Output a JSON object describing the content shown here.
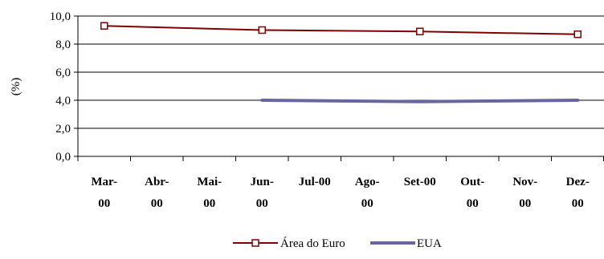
{
  "chart_data": {
    "type": "line",
    "title": "",
    "xlabel": "",
    "ylabel": "(%)",
    "ylim": [
      0,
      10
    ],
    "yticks": [
      "0,0",
      "2,0",
      "4,0",
      "6,0",
      "8,0",
      "10,0"
    ],
    "categories": [
      [
        "Mar-",
        "00"
      ],
      [
        "Abr-",
        "00"
      ],
      [
        "Mai-",
        "00"
      ],
      [
        "Jun-",
        "00"
      ],
      [
        "Jul-00"
      ],
      [
        "Ago-",
        "00"
      ],
      [
        "Set-00"
      ],
      [
        "Out-",
        "00"
      ],
      [
        "Nov-",
        "00"
      ],
      [
        "Dez-",
        "00"
      ]
    ],
    "grid": "horizontal",
    "legend": "bottom",
    "series": [
      {
        "name": "Área do Euro",
        "color": "#800000",
        "marker": "square",
        "points": [
          {
            "index": 0,
            "value": 9.3
          },
          {
            "index": 3,
            "value": 9.0
          },
          {
            "index": 6,
            "value": 8.9
          },
          {
            "index": 9,
            "value": 8.7
          }
        ]
      },
      {
        "name": "EUA",
        "color": "#6666a0",
        "marker": "none",
        "points": [
          {
            "index": 3,
            "value": 4.0
          },
          {
            "index": 6,
            "value": 3.9
          },
          {
            "index": 9,
            "value": 4.0
          }
        ]
      }
    ]
  }
}
